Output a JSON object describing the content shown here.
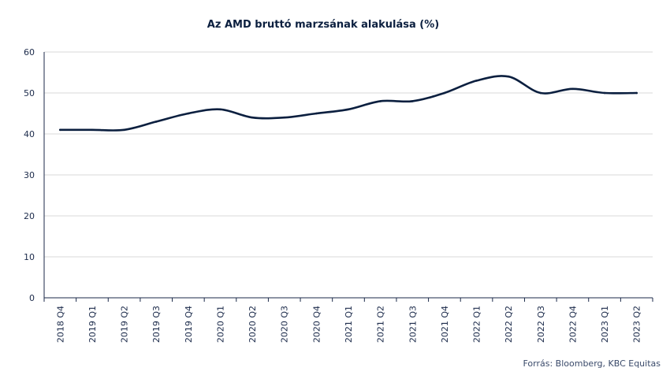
{
  "chart_data": {
    "type": "line",
    "title": "Az AMD bruttó  marzsának alakulása (%)",
    "xlabel": "",
    "ylabel": "",
    "ylim": [
      0,
      60
    ],
    "yticks": [
      0,
      10,
      20,
      30,
      40,
      50,
      60
    ],
    "grid": true,
    "line_color": "#0b1f3f",
    "categories": [
      "2018 Q4",
      "2019 Q1",
      "2019 Q2",
      "2019 Q3",
      "2019 Q4",
      "2020 Q1",
      "2020 Q2",
      "2020 Q3",
      "2020 Q4",
      "2021 Q1",
      "2021 Q2",
      "2021 Q3",
      "2021 Q4",
      "2022 Q1",
      "2022 Q2",
      "2022 Q3",
      "2022 Q4",
      "2023 Q1",
      "2023 Q2"
    ],
    "series": [
      {
        "values": [
          41,
          41,
          41,
          43,
          45,
          46,
          44,
          44,
          45,
          46,
          48,
          48,
          50,
          53,
          54,
          50,
          51,
          50,
          50
        ]
      }
    ]
  },
  "source": "Forrás: Bloomberg,  KBC Equitas"
}
